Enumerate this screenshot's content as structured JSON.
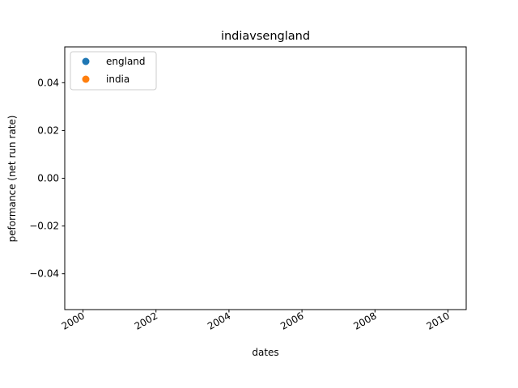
{
  "chart_data": {
    "type": "scatter",
    "title": "indiavsengland",
    "xlabel": "dates",
    "ylabel": "peformance (net run rate)",
    "xlim": [
      1999.5,
      2010.5
    ],
    "ylim": [
      -0.055,
      0.055
    ],
    "x_tick_labels": [
      "2000",
      "2002",
      "2004",
      "2006",
      "2008",
      "2010"
    ],
    "x_tick_values": [
      2000,
      2002,
      2004,
      2006,
      2008,
      2010
    ],
    "y_tick_labels": [
      "-0.04",
      "-0.02",
      "0.00",
      "0.02",
      "0.04"
    ],
    "y_tick_values": [
      -0.04,
      -0.02,
      0.0,
      0.02,
      0.04
    ],
    "grid": false,
    "legend_position": "upper-left",
    "series": [
      {
        "name": "england",
        "color": "#1f77b4",
        "x": [],
        "y": []
      },
      {
        "name": "india",
        "color": "#ff7f0e",
        "x": [],
        "y": []
      }
    ]
  }
}
